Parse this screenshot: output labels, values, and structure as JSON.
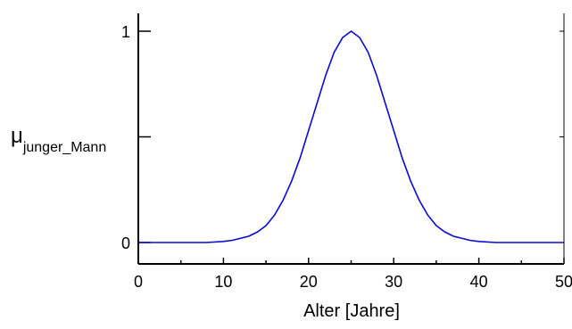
{
  "chart_data": {
    "type": "line",
    "title": "",
    "xlabel": "Alter [Jahre]",
    "ylabel": {
      "main": "μ",
      "subscript": "junger_Mann"
    },
    "xlim": [
      0,
      50
    ],
    "ylim": [
      0,
      1
    ],
    "x_tick_labels": [
      "0",
      "10",
      "20",
      "30",
      "40",
      "50"
    ],
    "y_tick_labels": [
      "0",
      "1"
    ],
    "grid": false,
    "legend": "none",
    "colors": {
      "line": "#0a0ad2",
      "axis": "#000000"
    },
    "series": [
      {
        "x": [
          0,
          2,
          4,
          6,
          8,
          10,
          11,
          12,
          13,
          14,
          15,
          16,
          17,
          18,
          19,
          20,
          21,
          22,
          23,
          24,
          25,
          26,
          27,
          28,
          29,
          30,
          31,
          32,
          33,
          34,
          35,
          36,
          37,
          38,
          39,
          40,
          42,
          44,
          46,
          48,
          50
        ],
        "y": [
          0,
          0,
          0,
          0,
          0,
          0.005,
          0.01,
          0.02,
          0.03,
          0.05,
          0.08,
          0.13,
          0.2,
          0.29,
          0.4,
          0.53,
          0.66,
          0.79,
          0.9,
          0.97,
          1,
          0.97,
          0.9,
          0.79,
          0.66,
          0.53,
          0.4,
          0.29,
          0.2,
          0.13,
          0.08,
          0.05,
          0.03,
          0.02,
          0.01,
          0.005,
          0,
          0,
          0,
          0,
          0
        ]
      }
    ]
  }
}
